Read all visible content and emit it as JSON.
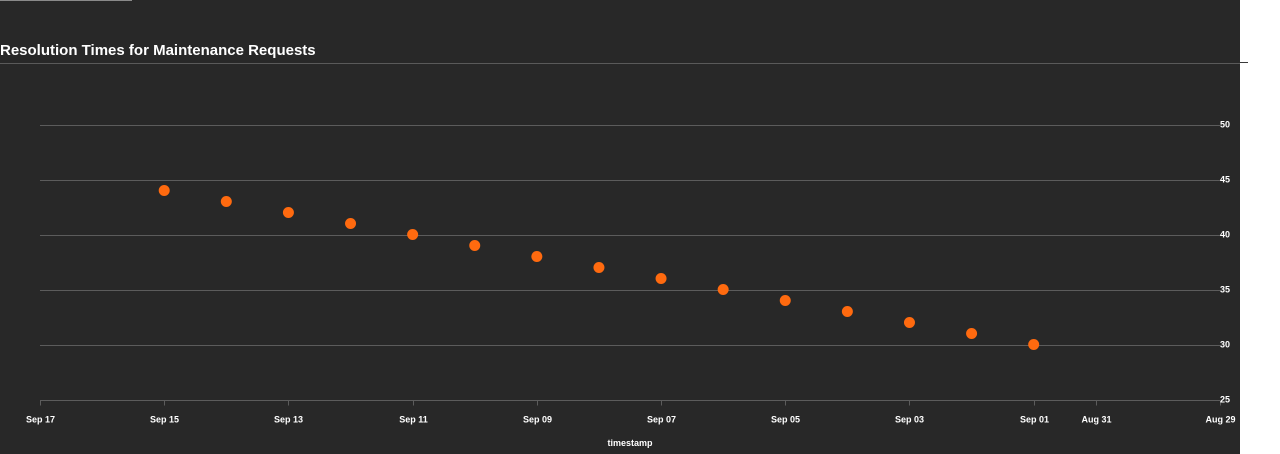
{
  "chart_data": {
    "type": "scatter",
    "title": "Resolution Times for Maintenance Requests",
    "xlabel": "timestamp",
    "ylabel": "",
    "x_axis_reversed": true,
    "x_range": [
      "2023-09-17",
      "2023-08-29"
    ],
    "x_ticks": [
      {
        "date": "2023-09-17",
        "label": "Sep 17"
      },
      {
        "date": "2023-09-15",
        "label": "Sep 15"
      },
      {
        "date": "2023-09-13",
        "label": "Sep 13"
      },
      {
        "date": "2023-09-11",
        "label": "Sep 11"
      },
      {
        "date": "2023-09-09",
        "label": "Sep 09"
      },
      {
        "date": "2023-09-07",
        "label": "Sep 07"
      },
      {
        "date": "2023-09-05",
        "label": "Sep 05"
      },
      {
        "date": "2023-09-03",
        "label": "Sep 03"
      },
      {
        "date": "2023-09-01",
        "label": "Sep 01"
      },
      {
        "date": "2023-08-31",
        "label": "Aug 31"
      },
      {
        "date": "2023-08-29",
        "label": "Aug 29"
      }
    ],
    "ylim": [
      25,
      55
    ],
    "y_ticks": [
      25,
      30,
      35,
      40,
      45,
      50
    ],
    "y_axis_side": "right",
    "grid": "horizontal",
    "series": [
      {
        "color": "#ff6a0f",
        "x": [
          "2023-09-15",
          "2023-09-14",
          "2023-09-13",
          "2023-09-12",
          "2023-09-11",
          "2023-09-10",
          "2023-09-09",
          "2023-09-08",
          "2023-09-07",
          "2023-09-06",
          "2023-09-05",
          "2023-09-04",
          "2023-09-03",
          "2023-09-02",
          "2023-09-01"
        ],
        "y": [
          44,
          43,
          42,
          41,
          40,
          39,
          38,
          37,
          36,
          35,
          34,
          33,
          32,
          31,
          30
        ]
      }
    ]
  },
  "colors": {
    "background": "#282828",
    "grid": "#5c5c5c",
    "text": "#ffffff",
    "point": "#ff6a0f"
  }
}
